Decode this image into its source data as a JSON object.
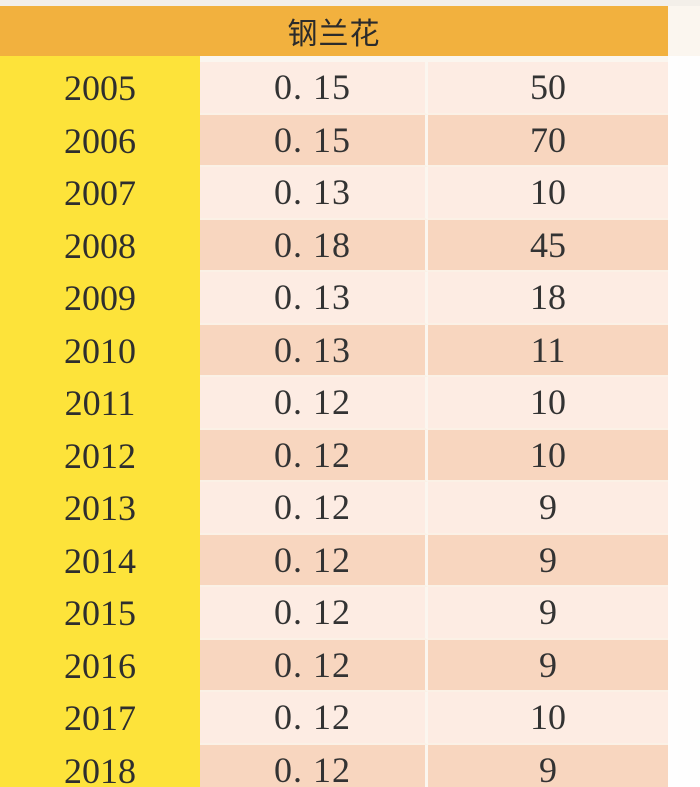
{
  "table": {
    "title": "钢兰花",
    "rows": [
      {
        "year": "2005",
        "rate": "0. 15",
        "value": "50"
      },
      {
        "year": "2006",
        "rate": "0. 15",
        "value": "70"
      },
      {
        "year": "2007",
        "rate": "0. 13",
        "value": "10"
      },
      {
        "year": "2008",
        "rate": "0. 18",
        "value": "45"
      },
      {
        "year": "2009",
        "rate": "0. 13",
        "value": "18"
      },
      {
        "year": "2010",
        "rate": "0. 13",
        "value": "11"
      },
      {
        "year": "2011",
        "rate": "0. 12",
        "value": "10"
      },
      {
        "year": "2012",
        "rate": "0. 12",
        "value": "10"
      },
      {
        "year": "2013",
        "rate": "0. 12",
        "value": "9"
      },
      {
        "year": "2014",
        "rate": "0. 12",
        "value": "9"
      },
      {
        "year": "2015",
        "rate": "0. 12",
        "value": "9"
      },
      {
        "year": "2016",
        "rate": "0. 12",
        "value": "9"
      },
      {
        "year": "2017",
        "rate": "0. 12",
        "value": "10"
      },
      {
        "year": "2018",
        "rate": "0. 12",
        "value": "9"
      }
    ]
  },
  "colors": {
    "header": "#f2b13e",
    "year_column": "#fde33a",
    "row_light": "#fdece3",
    "row_dark": "#f8d6bf"
  }
}
